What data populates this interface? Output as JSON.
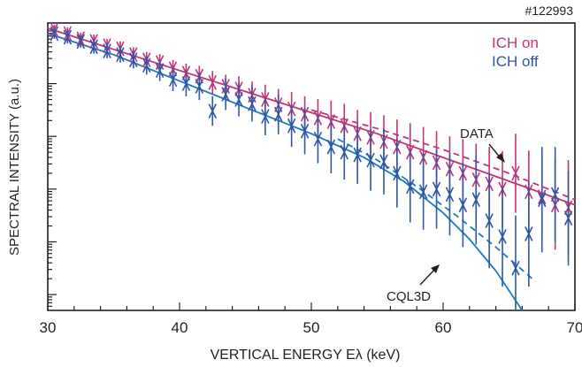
{
  "chart_data": {
    "type": "scatter",
    "shot_label": "#122993",
    "xlabel": "VERTICAL ENERGY Eλ (keV)",
    "ylabel": "SPECTRAL INTENSITY (a.u.)",
    "xlim": [
      30,
      70
    ],
    "ylim": [
      -5.3,
      0.15
    ],
    "y_scale": "log (relative, arbitrary units)",
    "x_ticks": [
      "30",
      "40",
      "50",
      "60",
      "70"
    ],
    "grid": false,
    "legend": {
      "placement": "top-right",
      "entries": [
        {
          "name": "ICH on",
          "color": "#c2337a"
        },
        {
          "name": "ICH off",
          "color": "#2e56a3"
        }
      ]
    },
    "annotations": [
      {
        "text": "DATA",
        "arrow_to": [
          65.5,
          -1.7
        ]
      },
      {
        "text": "CQL3D",
        "arrow_to": [
          59.5,
          -4.0
        ]
      }
    ],
    "series": [
      {
        "name": "ICH on",
        "kind": "data",
        "color": "#c2337a",
        "points": [
          {
            "x": 30.5,
            "y": 0.02,
            "err": 0.1
          },
          {
            "x": 31.5,
            "y": -0.05,
            "err": 0.12
          },
          {
            "x": 32.5,
            "y": -0.15,
            "err": 0.12
          },
          {
            "x": 33.5,
            "y": -0.2,
            "err": 0.13
          },
          {
            "x": 34.5,
            "y": -0.28,
            "err": 0.13
          },
          {
            "x": 35.5,
            "y": -0.34,
            "err": 0.14
          },
          {
            "x": 36.5,
            "y": -0.45,
            "err": 0.14
          },
          {
            "x": 37.5,
            "y": -0.55,
            "err": 0.15
          },
          {
            "x": 38.5,
            "y": -0.6,
            "err": 0.16
          },
          {
            "x": 39.5,
            "y": -0.72,
            "err": 0.17
          },
          {
            "x": 40.5,
            "y": -0.8,
            "err": 0.18
          },
          {
            "x": 41.5,
            "y": -0.86,
            "err": 0.2
          },
          {
            "x": 42.5,
            "y": -0.98,
            "err": 0.22
          },
          {
            "x": 43.5,
            "y": -1.05,
            "err": 0.22
          },
          {
            "x": 44.5,
            "y": -1.1,
            "err": 0.24
          },
          {
            "x": 45.5,
            "y": -1.22,
            "err": 0.26
          },
          {
            "x": 46.5,
            "y": -1.3,
            "err": 0.28
          },
          {
            "x": 47.5,
            "y": -1.4,
            "err": 0.3
          },
          {
            "x": 48.5,
            "y": -1.48,
            "err": 0.32
          },
          {
            "x": 49.5,
            "y": -1.58,
            "err": 0.34
          },
          {
            "x": 50.5,
            "y": -1.65,
            "err": 0.36
          },
          {
            "x": 51.5,
            "y": -1.72,
            "err": 0.4
          },
          {
            "x": 52.5,
            "y": -1.8,
            "err": 0.42
          },
          {
            "x": 53.5,
            "y": -1.95,
            "err": 0.45
          },
          {
            "x": 54.5,
            "y": -2.02,
            "err": 0.48
          },
          {
            "x": 55.5,
            "y": -2.1,
            "err": 0.5
          },
          {
            "x": 56.5,
            "y": -2.2,
            "err": 0.52
          },
          {
            "x": 57.5,
            "y": -2.3,
            "err": 0.55
          },
          {
            "x": 58.5,
            "y": -2.4,
            "err": 0.58
          },
          {
            "x": 59.5,
            "y": -2.5,
            "err": 0.6
          },
          {
            "x": 60.5,
            "y": -2.62,
            "err": 0.62
          },
          {
            "x": 61.5,
            "y": -2.7,
            "err": 0.65
          },
          {
            "x": 62.5,
            "y": -2.82,
            "err": 0.68
          },
          {
            "x": 63.5,
            "y": -2.9,
            "err": 0.7
          },
          {
            "x": 64.5,
            "y": -3.0,
            "err": 0.72
          },
          {
            "x": 65.5,
            "y": -2.7,
            "err": 0.75
          },
          {
            "x": 66.5,
            "y": -3.05,
            "err": 0.78
          },
          {
            "x": 67.5,
            "y": -3.15,
            "err": 0.8
          },
          {
            "x": 68.5,
            "y": -3.3,
            "err": 0.85
          },
          {
            "x": 69.5,
            "y": -3.35,
            "err": 0.9
          }
        ]
      },
      {
        "name": "ICH off",
        "kind": "data",
        "color": "#2e56a3",
        "points": [
          {
            "x": 30.5,
            "y": -0.05,
            "err": 0.1
          },
          {
            "x": 31.5,
            "y": -0.12,
            "err": 0.12
          },
          {
            "x": 32.5,
            "y": -0.2,
            "err": 0.12
          },
          {
            "x": 33.5,
            "y": -0.3,
            "err": 0.13
          },
          {
            "x": 34.5,
            "y": -0.38,
            "err": 0.14
          },
          {
            "x": 35.5,
            "y": -0.45,
            "err": 0.15
          },
          {
            "x": 36.5,
            "y": -0.55,
            "err": 0.16
          },
          {
            "x": 37.5,
            "y": -0.65,
            "err": 0.18
          },
          {
            "x": 38.5,
            "y": -0.75,
            "err": 0.2
          },
          {
            "x": 39.5,
            "y": -0.92,
            "err": 0.22
          },
          {
            "x": 40.5,
            "y": -1.0,
            "err": 0.24
          },
          {
            "x": 41.5,
            "y": -1.05,
            "err": 0.26
          },
          {
            "x": 42.5,
            "y": -1.52,
            "err": 0.28
          },
          {
            "x": 43.5,
            "y": -1.2,
            "err": 0.3
          },
          {
            "x": 44.5,
            "y": -1.3,
            "err": 0.32
          },
          {
            "x": 45.5,
            "y": -1.38,
            "err": 0.34
          },
          {
            "x": 46.5,
            "y": -1.62,
            "err": 0.36
          },
          {
            "x": 47.5,
            "y": -1.58,
            "err": 0.38
          },
          {
            "x": 48.5,
            "y": -1.8,
            "err": 0.4
          },
          {
            "x": 49.5,
            "y": -1.9,
            "err": 0.44
          },
          {
            "x": 50.5,
            "y": -2.05,
            "err": 0.46
          },
          {
            "x": 51.5,
            "y": -2.2,
            "err": 0.5
          },
          {
            "x": 52.5,
            "y": -2.3,
            "err": 0.52
          },
          {
            "x": 53.5,
            "y": -2.35,
            "err": 0.55
          },
          {
            "x": 54.5,
            "y": -2.45,
            "err": 0.58
          },
          {
            "x": 55.5,
            "y": -2.48,
            "err": 0.62
          },
          {
            "x": 56.5,
            "y": -2.7,
            "err": 0.65
          },
          {
            "x": 57.5,
            "y": -2.95,
            "err": 0.68
          },
          {
            "x": 58.5,
            "y": -3.05,
            "err": 0.72
          },
          {
            "x": 59.5,
            "y": -3.0,
            "err": 0.75
          },
          {
            "x": 60.5,
            "y": -3.1,
            "err": 0.78
          },
          {
            "x": 61.5,
            "y": -3.3,
            "err": 0.8
          },
          {
            "x": 62.5,
            "y": -3.2,
            "err": 0.85
          },
          {
            "x": 63.5,
            "y": -3.6,
            "err": 0.9
          },
          {
            "x": 64.5,
            "y": -3.9,
            "err": 0.95
          },
          {
            "x": 65.5,
            "y": -4.5,
            "err": 1.0
          },
          {
            "x": 66.5,
            "y": -3.85,
            "err": 1.0
          },
          {
            "x": 67.5,
            "y": -3.2,
            "err": 1.0
          },
          {
            "x": 68.5,
            "y": -3.1,
            "err": 0.9
          },
          {
            "x": 69.5,
            "y": -3.55,
            "err": 0.9
          }
        ]
      },
      {
        "name": "CQL3D ICH on",
        "kind": "model",
        "style": "solid",
        "color": "#c2337a",
        "x": [
          30,
          35,
          40,
          45,
          50,
          55,
          60,
          65,
          70
        ],
        "y": [
          0.05,
          -0.35,
          -0.75,
          -1.15,
          -1.55,
          -1.95,
          -2.4,
          -2.85,
          -3.3
        ]
      },
      {
        "name": "CQL3D ICH on (dashed)",
        "kind": "model",
        "style": "dashed",
        "color": "#c2337a",
        "x": [
          50,
          55,
          60,
          65,
          70
        ],
        "y": [
          -1.5,
          -1.85,
          -2.25,
          -2.7,
          -3.2
        ]
      },
      {
        "name": "CQL3D ICH off",
        "kind": "model",
        "style": "solid",
        "color": "#1a7ac2",
        "x": [
          30,
          35,
          40,
          45,
          50,
          54,
          57,
          60,
          62,
          64,
          66
        ],
        "y": [
          -0.05,
          -0.45,
          -0.95,
          -1.45,
          -1.95,
          -2.4,
          -2.85,
          -3.45,
          -3.95,
          -4.55,
          -5.3
        ]
      },
      {
        "name": "CQL3D ICH off (dashed)",
        "kind": "model",
        "style": "dashed",
        "color": "#1a7ac2",
        "x": [
          52,
          55,
          58,
          61,
          64,
          67
        ],
        "y": [
          -2.05,
          -2.45,
          -2.95,
          -3.5,
          -4.1,
          -4.75
        ]
      }
    ]
  }
}
